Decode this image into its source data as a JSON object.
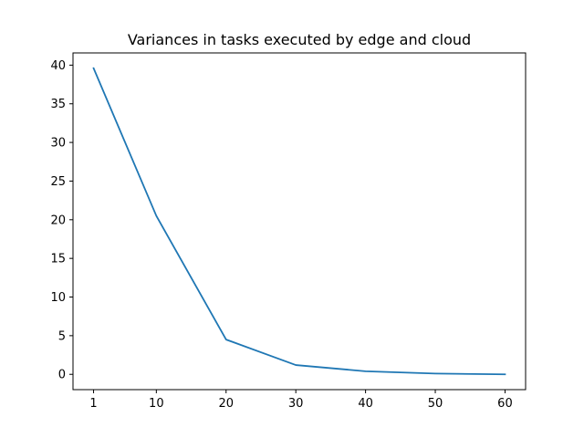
{
  "chart_data": {
    "type": "line",
    "title": "Variances in tasks executed by edge and cloud",
    "xlabel": "",
    "ylabel": "",
    "x": [
      1,
      10,
      20,
      30,
      40,
      50,
      60
    ],
    "x_ticks": [
      1,
      10,
      20,
      30,
      40,
      50,
      60
    ],
    "y_ticks": [
      0,
      5,
      10,
      15,
      20,
      25,
      30,
      35,
      40
    ],
    "series": [
      {
        "values": [
          39.6,
          20.5,
          4.5,
          1.2,
          0.4,
          0.1,
          0.0
        ]
      }
    ],
    "xlim": [
      -1.95,
      62.95
    ],
    "ylim": [
      -1.98,
      41.58
    ],
    "grid": false,
    "colors": {
      "line": "#1f77b4",
      "axes": "#000000",
      "background": "#ffffff"
    }
  }
}
